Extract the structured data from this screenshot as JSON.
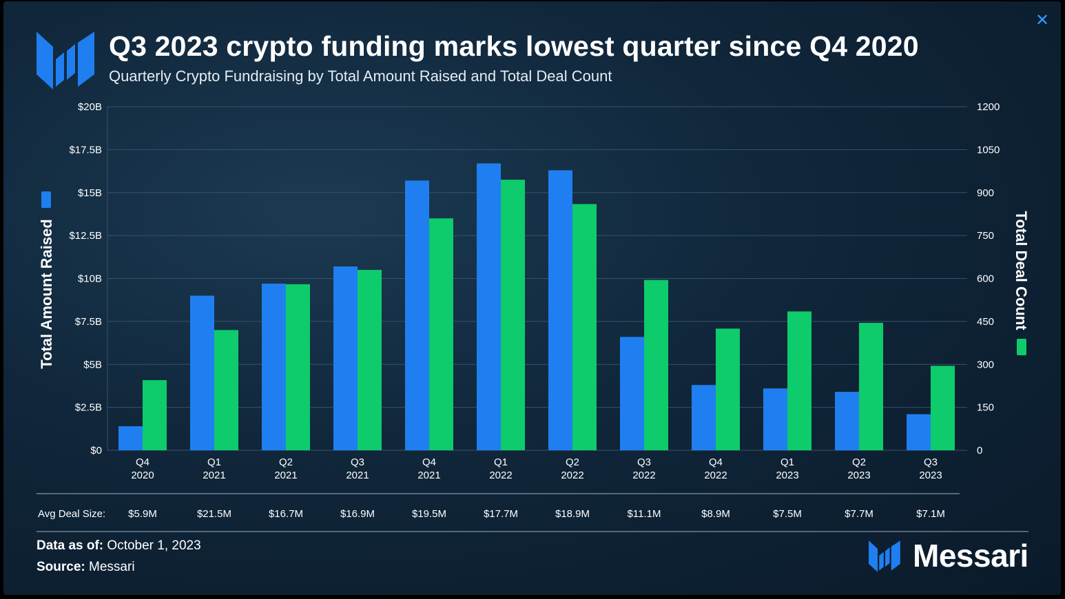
{
  "header": {
    "title": "Q3 2023 crypto funding marks lowest quarter since Q4 2020",
    "subtitle": "Quarterly Crypto Fundraising by Total Amount Raised and Total Deal Count",
    "close_icon": "close-icon"
  },
  "colors": {
    "amount": "#1f7ff0",
    "deals": "#0ecb6b",
    "grid": "#3a5168",
    "text": "#ffffff"
  },
  "chart_data": {
    "type": "bar",
    "categories": [
      [
        "Q4",
        "2020"
      ],
      [
        "Q1",
        "2021"
      ],
      [
        "Q2",
        "2021"
      ],
      [
        "Q3",
        "2021"
      ],
      [
        "Q4",
        "2021"
      ],
      [
        "Q1",
        "2022"
      ],
      [
        "Q2",
        "2022"
      ],
      [
        "Q3",
        "2022"
      ],
      [
        "Q4",
        "2022"
      ],
      [
        "Q1",
        "2023"
      ],
      [
        "Q2",
        "2023"
      ],
      [
        "Q3",
        "2023"
      ]
    ],
    "series": [
      {
        "axis": "left",
        "color": "#1f7ff0",
        "values": [
          1.4,
          9.0,
          9.7,
          10.7,
          15.7,
          16.7,
          16.3,
          6.6,
          3.8,
          3.6,
          3.4,
          2.1
        ]
      },
      {
        "axis": "right",
        "color": "#0ecb6b",
        "values": [
          245,
          420,
          580,
          630,
          810,
          945,
          860,
          595,
          425,
          485,
          445,
          295
        ]
      }
    ],
    "ylabel_left": "Total Amount Raised",
    "ylabel_right": "Total Deal Count",
    "ylim_left": [
      0,
      20
    ],
    "ylim_right": [
      0,
      1200
    ],
    "yticks_left": [
      "$0",
      "$2.5B",
      "$5B",
      "$7.5B",
      "$10B",
      "$12.5B",
      "$15B",
      "$17.5B",
      "$20B"
    ],
    "yticks_right": [
      "0",
      "150",
      "300",
      "450",
      "600",
      "750",
      "900",
      "1050",
      "1200"
    ],
    "grid": true,
    "avg_deal_size_label": "Avg Deal Size:",
    "avg_deal_size": [
      "$5.9M",
      "$21.5M",
      "$16.7M",
      "$16.9M",
      "$19.5M",
      "$17.7M",
      "$18.9M",
      "$11.1M",
      "$8.9M",
      "$7.5M",
      "$7.7M",
      "$7.1M"
    ]
  },
  "footer": {
    "data_as_of_label": "Data as of:",
    "data_as_of_value": "October 1, 2023",
    "source_label": "Source:",
    "source_value": "Messari",
    "brand": "Messari"
  }
}
